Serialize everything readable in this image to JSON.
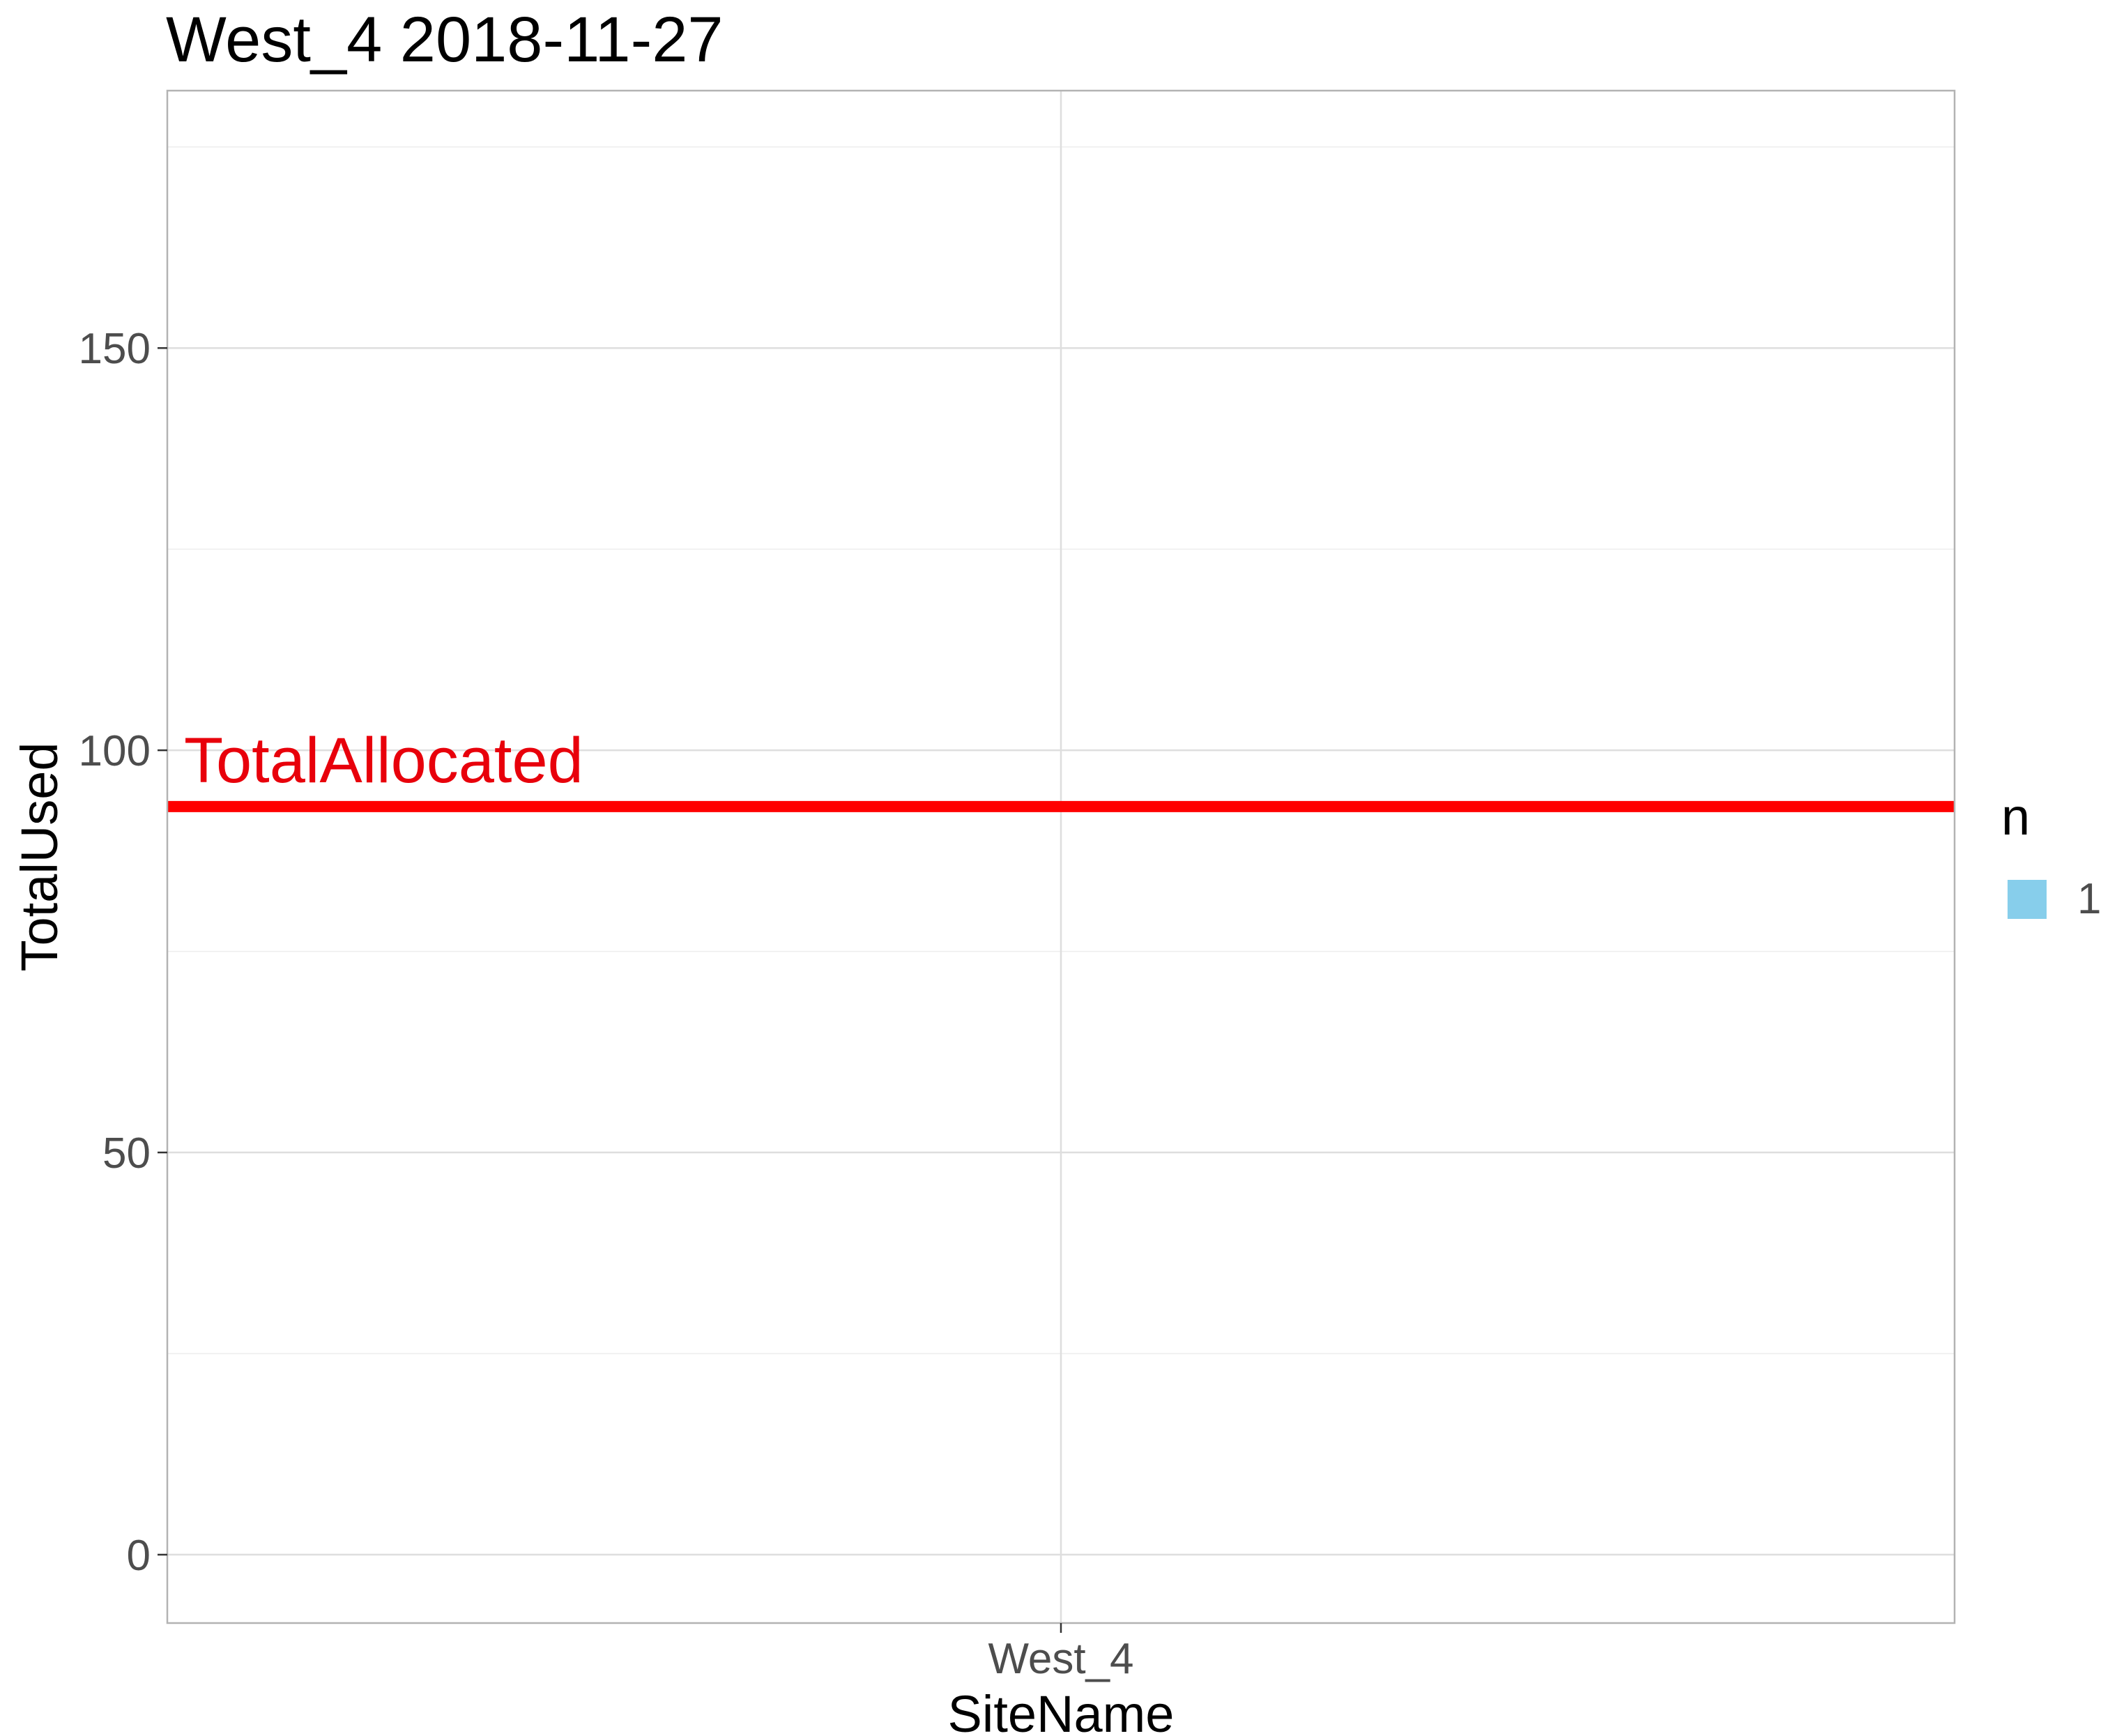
{
  "chart_data": {
    "type": "bar",
    "title": "West_4 2018-11-27",
    "xlabel": "SiteName",
    "ylabel": "TotalUsed",
    "categories": [
      "West_4"
    ],
    "series": [
      {
        "name": "1",
        "values": [
          0
        ]
      }
    ],
    "ylim": [
      -8.5,
      182
    ],
    "yticks": [
      0,
      50,
      100,
      150
    ],
    "ytick_labels": [
      "0",
      "50",
      "100",
      "150"
    ],
    "grid": true,
    "reference_line": {
      "value": 93,
      "label": "TotalAllocated",
      "color": "#ff0000"
    },
    "legend": {
      "title": "n",
      "position": "right",
      "entries": [
        {
          "label": "1",
          "color": "#87ceeb"
        }
      ]
    },
    "colors": {
      "fill": "#87ceeb",
      "reference": "#ff0000",
      "panel_border": "#b3b3b3",
      "grid_major": "#dedede",
      "grid_minor": "#ededed"
    }
  }
}
